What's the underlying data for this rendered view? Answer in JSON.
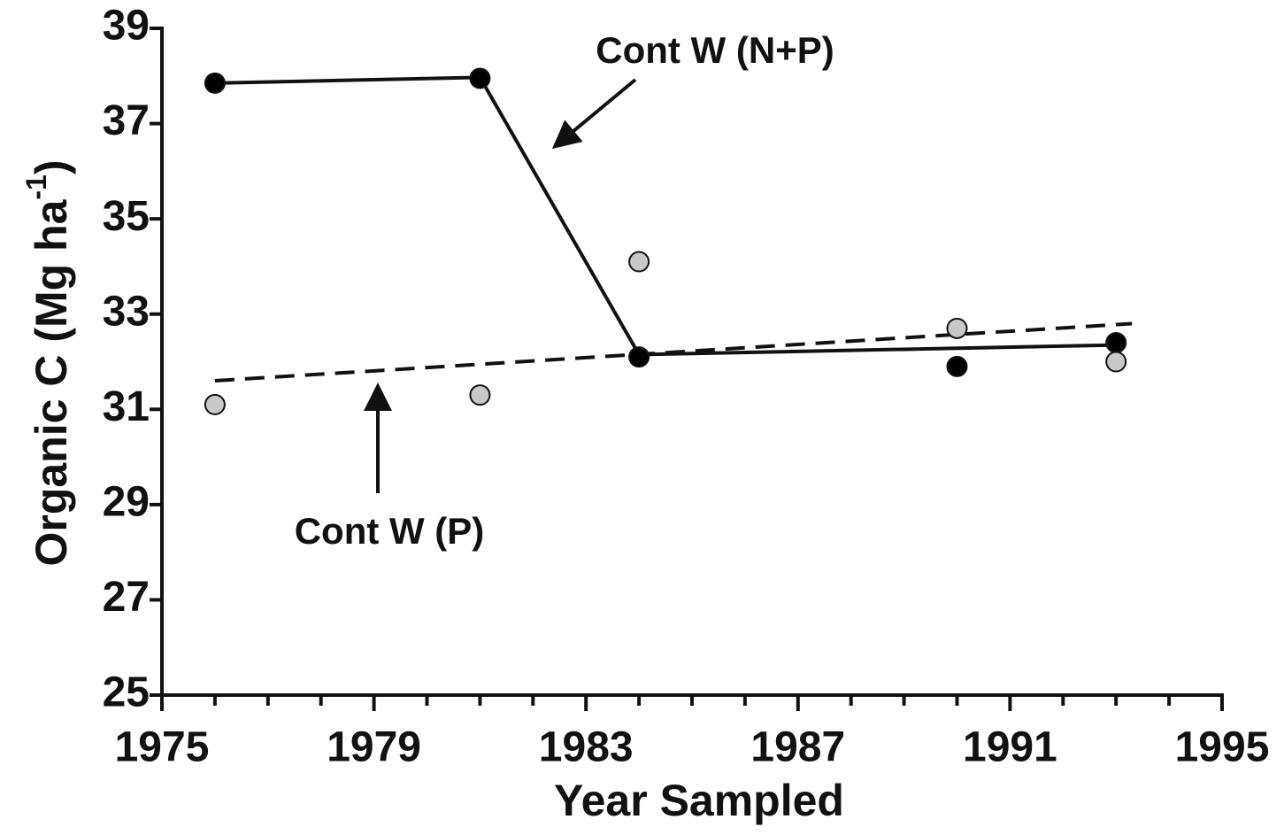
{
  "chart_data": {
    "type": "scatter",
    "xlabel": "Year Sampled",
    "ylabel": "Organic C (Mg ha",
    "ylabel_sup": "-1",
    "ylabel_end": ")",
    "xlim": [
      1975,
      1995
    ],
    "xticks": [
      1975,
      1979,
      1983,
      1987,
      1991,
      1995
    ],
    "xminorticks": [
      1976,
      1977,
      1978,
      1980,
      1981,
      1982,
      1984,
      1985,
      1986,
      1988,
      1989,
      1990,
      1992,
      1993,
      1994
    ],
    "ylim": [
      25,
      39
    ],
    "yticks": [
      25,
      27,
      29,
      31,
      33,
      35,
      37,
      39
    ],
    "series": [
      {
        "color": "#000000",
        "x": [
          1976,
          1981,
          1984,
          1990,
          1993
        ],
        "values": [
          37.85,
          37.95,
          32.1,
          31.9,
          32.4
        ]
      },
      {
        "color": "#c8c8c8",
        "x": [
          1976,
          1981,
          1984,
          1990,
          1993
        ],
        "values": [
          31.1,
          31.3,
          34.1,
          32.7,
          32.0
        ]
      }
    ],
    "lines": [
      {
        "dash": false,
        "x": [
          1976,
          1981,
          1984,
          1993
        ],
        "values": [
          37.85,
          37.97,
          32.15,
          32.35
        ]
      },
      {
        "dash": true,
        "x": [
          1976,
          1993.3
        ],
        "values": [
          31.6,
          32.8
        ]
      }
    ],
    "annotations": [
      "Cont W (N+P)",
      "Cont W (P)"
    ]
  }
}
